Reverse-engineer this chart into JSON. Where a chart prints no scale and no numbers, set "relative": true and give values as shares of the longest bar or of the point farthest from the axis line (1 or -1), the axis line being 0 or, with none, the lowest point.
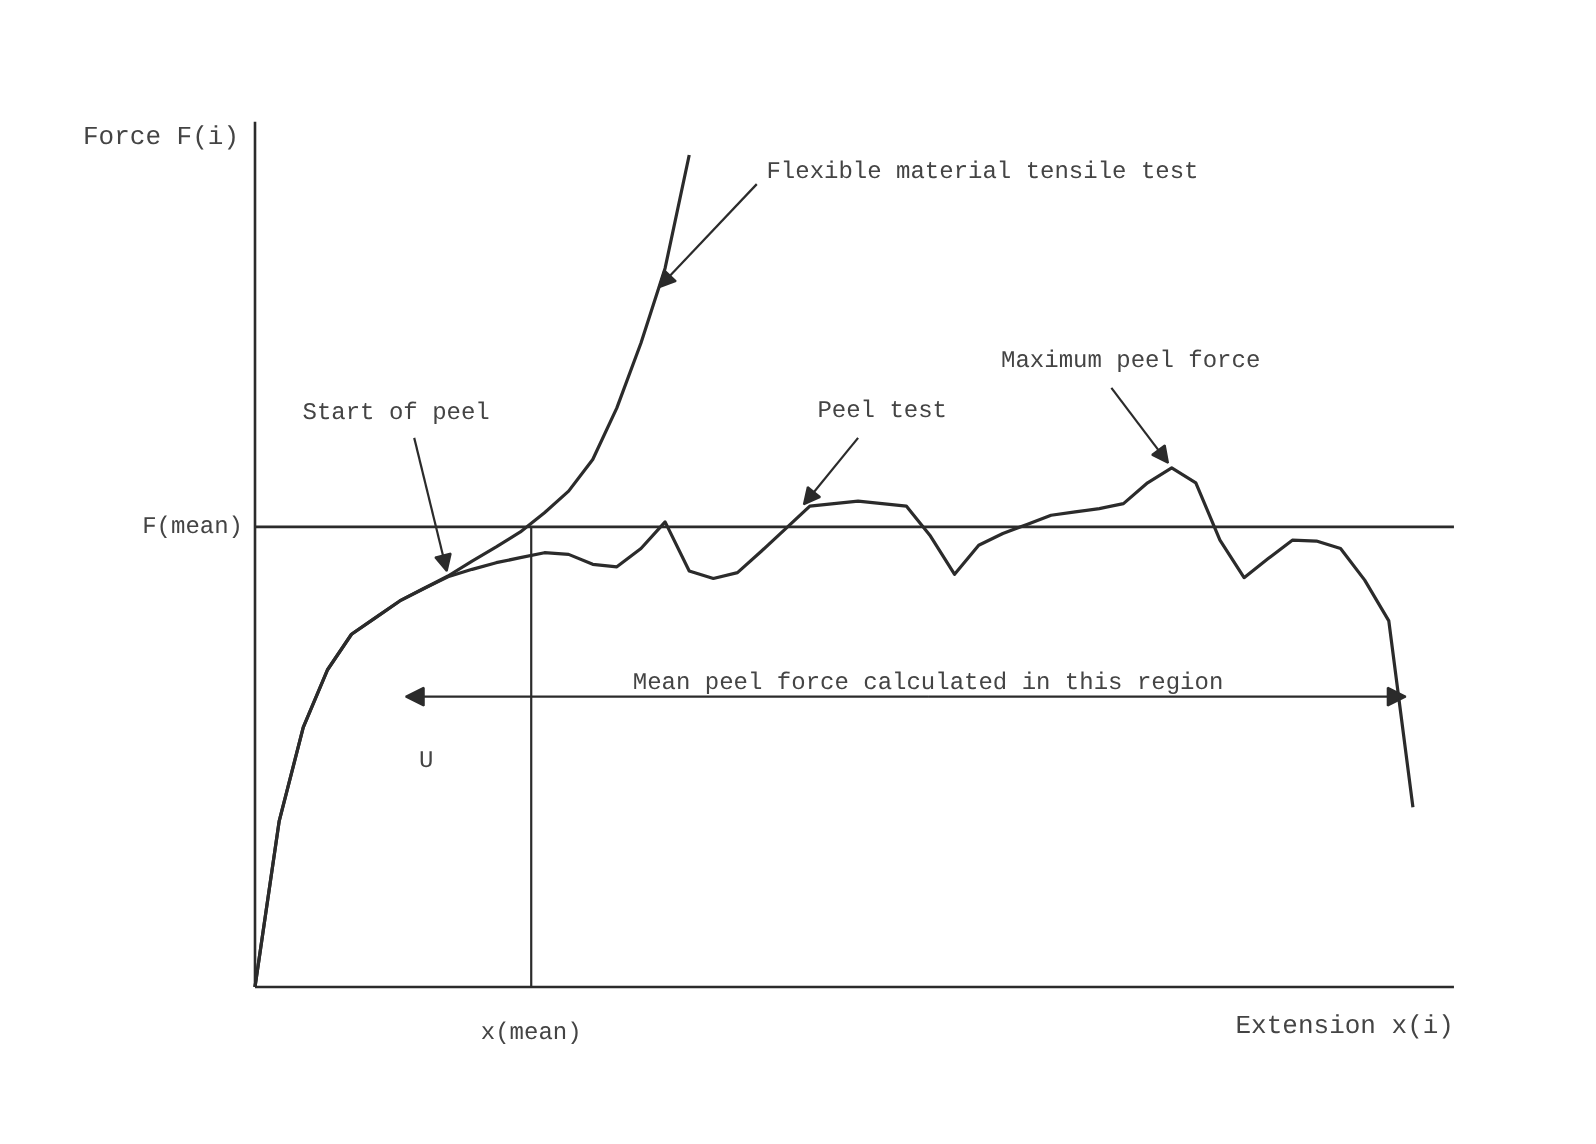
{
  "chart_data": {
    "type": "line",
    "relative": true,
    "xlabel": "Extension x(i)",
    "ylabel": "Force F(i)",
    "categories": [
      null,
      null,
      null,
      null,
      null,
      null,
      null,
      null,
      null,
      null,
      null,
      null,
      null,
      null,
      null,
      null,
      null,
      null,
      null,
      null,
      null,
      null,
      null,
      null,
      null,
      null,
      null,
      null,
      null,
      null,
      null,
      null,
      null,
      null,
      null,
      null,
      null,
      null,
      null,
      null,
      null,
      null,
      null,
      null,
      null,
      null,
      null,
      null,
      null
    ],
    "grid": false,
    "marker": "none",
    "line_style": "solid",
    "series": [
      {
        "color": "#2b2b2b",
        "values": [
          0,
          0.199,
          0.312,
          0.381,
          0.424,
          0.444,
          0.464,
          0.479,
          0.494,
          0.512,
          0.529,
          0.547,
          0.57,
          0.596,
          0.634,
          0.696,
          0.774,
          0.864,
          1.0,
          null,
          null,
          null,
          null,
          null,
          null,
          null,
          null,
          null,
          null,
          null,
          null,
          null,
          null,
          null,
          null,
          null,
          null,
          null,
          null,
          null,
          null,
          null,
          null,
          null,
          null,
          null,
          null,
          null,
          null
        ]
      },
      {
        "color": "#2b2b2b",
        "values": [
          0,
          0.199,
          0.312,
          0.381,
          0.424,
          0.444,
          0.464,
          0.479,
          0.493,
          0.502,
          0.51,
          0.516,
          0.522,
          0.52,
          0.508,
          0.505,
          0.527,
          0.559,
          0.5,
          0.491,
          0.498,
          0.524,
          0.551,
          0.578,
          0.581,
          0.584,
          0.581,
          0.578,
          0.542,
          0.496,
          0.531,
          0.545,
          0.556,
          0.567,
          0.571,
          0.575,
          0.581,
          0.606,
          0.624,
          0.606,
          0.537,
          0.492,
          0.515,
          0.537,
          0.536,
          0.527,
          0.489,
          0.44,
          0.216
        ]
      }
    ],
    "ref_lines": [
      {
        "axis": "y",
        "value": 0.553,
        "label": "F(mean)"
      }
    ],
    "annotations": [
      "Flexible material tensile test",
      "Start of peel",
      "Peel test",
      "Maximum peel force",
      "U",
      "Mean peel force calculated in this region",
      "x(mean)"
    ]
  }
}
